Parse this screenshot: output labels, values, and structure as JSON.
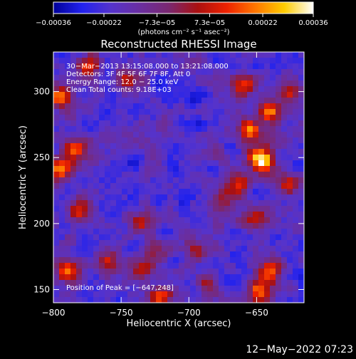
{
  "chart_data": {
    "type": "heatmap",
    "title": "Reconstructed RHESSI Image",
    "xlabel": "Heliocentric X (arcsec)",
    "ylabel": "Heliocentric Y (arcsec)",
    "xlim": [
      -800,
      -615
    ],
    "ylim": [
      140,
      330
    ],
    "x_ticks": [
      -800,
      -750,
      -700,
      -650
    ],
    "x_tick_labels": [
      "−800",
      "−750",
      "−700",
      "−650"
    ],
    "y_ticks": [
      150,
      200,
      250,
      300
    ],
    "y_tick_labels": [
      "150",
      "200",
      "250",
      "300"
    ],
    "grid": false,
    "colorbar": {
      "min": -0.00036,
      "max": 0.00036,
      "ticks": [
        -0.00036,
        -0.00022,
        -7.3e-05,
        7.3e-05,
        0.00022,
        0.00036
      ],
      "tick_labels": [
        "−0.00036",
        "−0.00022",
        "−7.3e−05",
        "7.3e−05",
        "0.00022",
        "0.00036"
      ],
      "unit_label": "(photons cm⁻² s⁻¹ asec⁻²)"
    },
    "annotations": [
      "30−Mar−2013 13:15:08.000 to 13:21:08.000",
      "Detectors: 3F 4F 5F 6F 7F 8F, Att 0",
      "Energy Range: 12.0 − 25.0 keV",
      "Clean    Total counts: 9.18E+03"
    ],
    "peak_label": "Position of Peak = [−647,248]",
    "peak": [
      -647,
      248
    ],
    "sources": [
      {
        "x": -647,
        "y": 248,
        "amp": 1.0
      },
      {
        "x": -655,
        "y": 270,
        "amp": 0.72
      },
      {
        "x": -660,
        "y": 305,
        "amp": 0.68
      },
      {
        "x": -640,
        "y": 285,
        "amp": 0.6
      },
      {
        "x": -625,
        "y": 300,
        "amp": 0.55
      },
      {
        "x": -665,
        "y": 230,
        "amp": 0.58
      },
      {
        "x": -650,
        "y": 205,
        "amp": 0.55
      },
      {
        "x": -625,
        "y": 230,
        "amp": 0.5
      },
      {
        "x": -640,
        "y": 165,
        "amp": 0.62
      },
      {
        "x": -648,
        "y": 150,
        "amp": 0.7
      },
      {
        "x": -720,
        "y": 145,
        "amp": 0.6
      },
      {
        "x": -735,
        "y": 165,
        "amp": 0.55
      },
      {
        "x": -760,
        "y": 170,
        "amp": 0.6
      },
      {
        "x": -790,
        "y": 165,
        "amp": 0.62
      },
      {
        "x": -795,
        "y": 240,
        "amp": 0.7
      },
      {
        "x": -785,
        "y": 255,
        "amp": 0.6
      },
      {
        "x": -780,
        "y": 210,
        "amp": 0.5
      },
      {
        "x": -795,
        "y": 295,
        "amp": 0.72
      },
      {
        "x": -775,
        "y": 320,
        "amp": 0.5
      },
      {
        "x": -745,
        "y": 310,
        "amp": 0.45
      },
      {
        "x": -735,
        "y": 200,
        "amp": 0.5
      },
      {
        "x": -725,
        "y": 178,
        "amp": 0.4
      },
      {
        "x": -695,
        "y": 180,
        "amp": 0.35
      },
      {
        "x": -685,
        "y": 155,
        "amp": 0.45
      },
      {
        "x": -675,
        "y": 215,
        "amp": 0.3
      }
    ],
    "colormap": [
      "#000099",
      "#2222ee",
      "#5533cc",
      "#6a2ea0",
      "#7a2870",
      "#aa1010",
      "#ee2200",
      "#ff7700",
      "#ffcc00",
      "#ffffff"
    ]
  },
  "footer": {
    "date_stamp": "12−May−2022 07:23"
  }
}
